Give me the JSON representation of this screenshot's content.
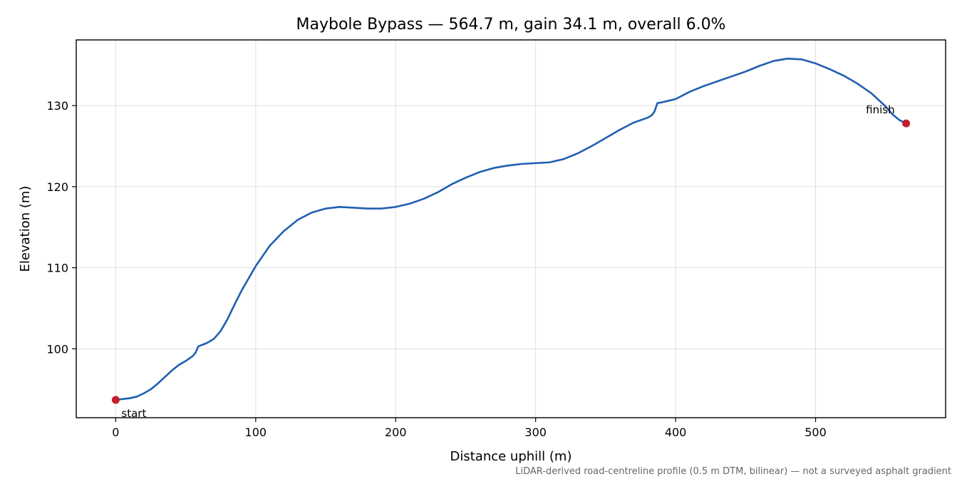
{
  "chart_data": {
    "type": "line",
    "title": "Maybole Bypass — 564.7 m, gain 34.1 m, overall 6.0%",
    "xlabel": "Distance uphill (m)",
    "ylabel": "Elevation (m)",
    "caption": "LiDAR-derived road-centreline profile (0.5 m DTM, bilinear) — not a surveyed asphalt gradient",
    "xlim": [
      -28.2,
      592.9
    ],
    "ylim": [
      91.5,
      138.1
    ],
    "x_ticks": [
      0,
      100,
      200,
      300,
      400,
      500
    ],
    "y_ticks": [
      100,
      110,
      120,
      130
    ],
    "x_tick_labels": [
      "0",
      "100",
      "200",
      "300",
      "400",
      "500"
    ],
    "y_tick_labels": [
      "100",
      "110",
      "120",
      "130"
    ],
    "grid": true,
    "line_color": "#1f5fb0",
    "marker_color": "#c21f2b",
    "series": [
      {
        "x": [
          0,
          5,
          10,
          15,
          20,
          25,
          30,
          35,
          40,
          45,
          50,
          55,
          57,
          59,
          62,
          65,
          70,
          75,
          80,
          85,
          90,
          95,
          100,
          110,
          120,
          130,
          140,
          150,
          160,
          170,
          180,
          190,
          200,
          210,
          220,
          230,
          240,
          250,
          260,
          270,
          280,
          290,
          300,
          310,
          320,
          330,
          340,
          350,
          360,
          370,
          380,
          383,
          385,
          387,
          390,
          395,
          400,
          410,
          420,
          430,
          440,
          450,
          460,
          470,
          480,
          490,
          500,
          510,
          520,
          530,
          540,
          550,
          555,
          560,
          564.7
        ],
        "y": [
          93.7,
          93.8,
          93.9,
          94.1,
          94.5,
          95.0,
          95.7,
          96.5,
          97.3,
          98.0,
          98.5,
          99.1,
          99.5,
          100.3,
          100.5,
          100.7,
          101.2,
          102.2,
          103.7,
          105.5,
          107.2,
          108.7,
          110.2,
          112.7,
          114.5,
          115.9,
          116.8,
          117.3,
          117.5,
          117.4,
          117.3,
          117.3,
          117.5,
          117.9,
          118.5,
          119.3,
          120.3,
          121.1,
          121.8,
          122.3,
          122.6,
          122.8,
          122.9,
          123.0,
          123.4,
          124.1,
          125.0,
          126.0,
          127.0,
          127.9,
          128.5,
          128.8,
          129.3,
          130.3,
          130.4,
          130.6,
          130.8,
          131.7,
          132.4,
          133.0,
          133.6,
          134.2,
          134.9,
          135.5,
          135.8,
          135.7,
          135.2,
          134.5,
          133.7,
          132.7,
          131.5,
          129.9,
          128.9,
          128.2,
          127.8
        ]
      }
    ],
    "markers": [
      {
        "label": "start",
        "x": 0,
        "y": 93.7
      },
      {
        "label": "finish",
        "x": 564.7,
        "y": 127.8
      }
    ]
  }
}
